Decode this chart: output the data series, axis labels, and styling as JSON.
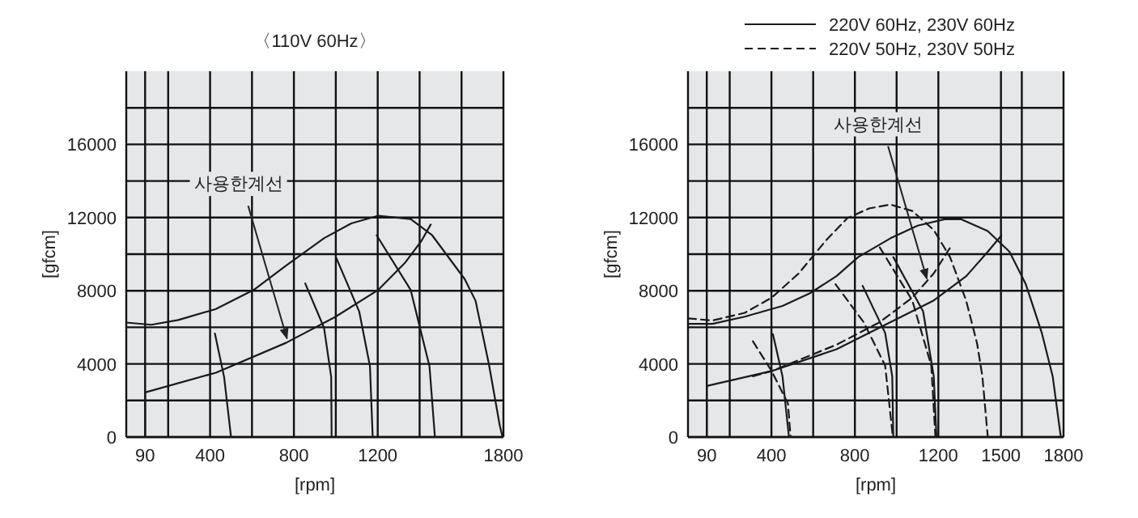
{
  "chart_data": [
    {
      "type": "line",
      "title": "〈110V 60Hz〉",
      "xlabel": "[rpm]",
      "ylabel": "[gfcm]",
      "grid": true,
      "legend": false,
      "marker": "none",
      "xlim": [
        0,
        1800
      ],
      "ylim": [
        0,
        20000
      ],
      "xticks": [
        90,
        {
          "value": 200,
          "label": null
        },
        400,
        {
          "value": 600,
          "label": null
        },
        800,
        {
          "value": 1000,
          "label": null
        },
        1200,
        {
          "value": 1400,
          "label": null
        },
        {
          "value": 1600,
          "label": null
        },
        1800
      ],
      "yticks": [
        0,
        {
          "value": 2000,
          "label": null
        },
        4000,
        {
          "value": 6000,
          "label": null
        },
        8000,
        {
          "value": 10000,
          "label": null
        },
        12000,
        {
          "value": 14000,
          "label": null
        },
        16000,
        {
          "value": 18000,
          "label": null
        }
      ],
      "annotations": [
        {
          "text": "사용한계선",
          "x": 767,
          "y": 5390
        }
      ],
      "series": [
        {
          "color": "#1a1a1a",
          "line_style": "solid",
          "x": [
            0,
            119,
            248,
            428,
            609,
            764,
            945,
            1074,
            1203,
            1357,
            1460,
            1615,
            1667,
            1731,
            1783,
            1796
          ],
          "values": [
            6260,
            6140,
            6400,
            7000,
            8050,
            9390,
            10880,
            11680,
            12100,
            11920,
            11030,
            8640,
            7450,
            3960,
            600,
            0
          ]
        },
        {
          "color": "#1a1a1a",
          "line_style": "solid",
          "x": [
            90,
            90,
            428,
            764,
            996,
            1203,
            1331,
            1409,
            1453
          ],
          "values": [
            0,
            2440,
            3520,
            5160,
            6560,
            8050,
            9540,
            10730,
            11620
          ]
        },
        {
          "color": "#1a1a1a",
          "line_style": "solid",
          "x": [
            423,
            467,
            500
          ],
          "values": [
            5660,
            3280,
            0
          ]
        },
        {
          "color": "#1a1a1a",
          "line_style": "solid",
          "x": [
            854,
            944,
            978,
            980
          ],
          "values": [
            8400,
            5960,
            3280,
            0
          ]
        },
        {
          "color": "#1a1a1a",
          "line_style": "solid",
          "x": [
            1001,
            1112,
            1163,
            1176
          ],
          "values": [
            9830,
            6850,
            3870,
            0
          ]
        },
        {
          "color": "#1a1a1a",
          "line_style": "solid",
          "x": [
            1195,
            1357,
            1447,
            1473
          ],
          "values": [
            11030,
            8050,
            3870,
            0
          ]
        }
      ]
    },
    {
      "type": "line",
      "xlabel": "[rpm]",
      "ylabel": "[gfcm]",
      "grid": true,
      "legend": "top",
      "marker": "none",
      "xlim": [
        0,
        1800
      ],
      "ylim": [
        0,
        20000
      ],
      "xticks": [
        90,
        {
          "value": 200,
          "label": null
        },
        400,
        {
          "value": 600,
          "label": null
        },
        800,
        {
          "value": 1000,
          "label": null
        },
        1200,
        1500,
        {
          "value": 1600,
          "label": null
        },
        1800
      ],
      "yticks": [
        0,
        {
          "value": 2000,
          "label": null
        },
        4000,
        {
          "value": 6000,
          "label": null
        },
        8000,
        {
          "value": 10000,
          "label": null
        },
        12000,
        {
          "value": 14000,
          "label": null
        },
        16000,
        {
          "value": 18000,
          "label": null
        }
      ],
      "annotations": [
        {
          "text": "사용한계선",
          "x": 1145,
          "y": 8650
        }
      ],
      "series": [
        {
          "name": "220V 60Hz, 230V 60Hz",
          "color": "#1a1a1a",
          "line_style": "solid",
          "x": [
            0,
            117,
            272,
            453,
            583,
            712,
            816,
            971,
            1101,
            1230,
            1308,
            1437,
            1541,
            1619,
            1696,
            1748,
            1787
          ],
          "values": [
            6190,
            6190,
            6580,
            7170,
            7850,
            8800,
            9840,
            10870,
            11560,
            11910,
            11910,
            11260,
            10130,
            8360,
            5690,
            3320,
            0
          ]
        },
        {
          "name": "220V 50Hz, 230V 50Hz",
          "color": "#1a1a1a",
          "line_style": "dashed",
          "x": [
            0,
            117,
            272,
            401,
            531,
            660,
            764,
            868,
            971,
            1075,
            1178,
            1256,
            1333,
            1386,
            1411,
            1437
          ],
          "values": [
            6490,
            6370,
            6790,
            7620,
            8950,
            10730,
            11970,
            12500,
            12710,
            12360,
            11320,
            9840,
            7470,
            5100,
            3320,
            0
          ]
        },
        {
          "color": "#1a1a1a",
          "line_style": "solid",
          "x": [
            90,
            90,
            401,
            712,
            971,
            1178,
            1334,
            1437,
            1502
          ],
          "values": [
            0,
            2790,
            3610,
            4800,
            6280,
            7470,
            8800,
            10130,
            11020
          ]
        },
        {
          "color": "#1a1a1a",
          "line_style": "dashed",
          "x": [
            311,
            401,
            712,
            919,
            1075,
            1178,
            1264
          ],
          "values": [
            3320,
            3610,
            5050,
            6280,
            7620,
            8950,
            10490
          ]
        },
        {
          "color": "#1a1a1a",
          "line_style": "solid",
          "x": [
            407,
            453,
            484
          ],
          "values": [
            5630,
            3320,
            0
          ]
        },
        {
          "color": "#1a1a1a",
          "line_style": "solid",
          "x": [
            837,
            945,
            979,
            984
          ],
          "values": [
            8270,
            5690,
            3320,
            0
          ]
        },
        {
          "color": "#1a1a1a",
          "line_style": "solid",
          "x": [
            984,
            1127,
            1178,
            1191
          ],
          "values": [
            9840,
            6870,
            3320,
            0
          ]
        },
        {
          "color": "#1a1a1a",
          "line_style": "dashed",
          "x": [
            311,
            401,
            479,
            492
          ],
          "values": [
            5240,
            3610,
            1840,
            0
          ]
        },
        {
          "color": "#1a1a1a",
          "line_style": "dashed",
          "x": [
            707,
            842,
            945,
            982
          ],
          "values": [
            8360,
            6280,
            3910,
            0
          ]
        },
        {
          "color": "#1a1a1a",
          "line_style": "dashed",
          "x": [
            919,
            1075,
            1166,
            1186
          ],
          "values": [
            10370,
            7470,
            3910,
            0
          ]
        }
      ]
    }
  ]
}
